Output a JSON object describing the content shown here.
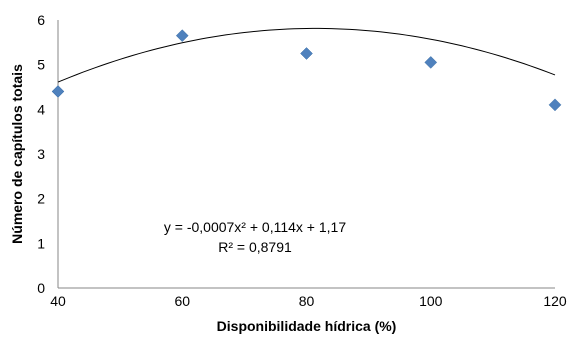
{
  "chart_data": {
    "type": "scatter",
    "title": "",
    "xlabel": "Disponibilidade hídrica (%)",
    "ylabel": "Número de capítulos totais",
    "xlim": [
      40,
      120
    ],
    "ylim": [
      0,
      6
    ],
    "x_ticks": [
      "40",
      "60",
      "80",
      "100",
      "120"
    ],
    "y_ticks": [
      "0",
      "1",
      "2",
      "3",
      "4",
      "5",
      "6"
    ],
    "grid": false,
    "legend": "none",
    "marker": "diamond",
    "marker_color": "#4f81bd",
    "series": [
      {
        "x": [
          40,
          60,
          80,
          100,
          120
        ],
        "y": [
          4.4,
          5.65,
          5.25,
          5.05,
          4.1
        ]
      }
    ],
    "trendline": {
      "type": "polynomial",
      "coefficients": {
        "a": -0.0007,
        "b": 0.114,
        "c": 1.17
      },
      "line_color": "#000000"
    },
    "annotations": {
      "equation": "y = -0,0007x² + 0,114x + 1,17",
      "r_squared": "R² = 0,8791"
    }
  }
}
